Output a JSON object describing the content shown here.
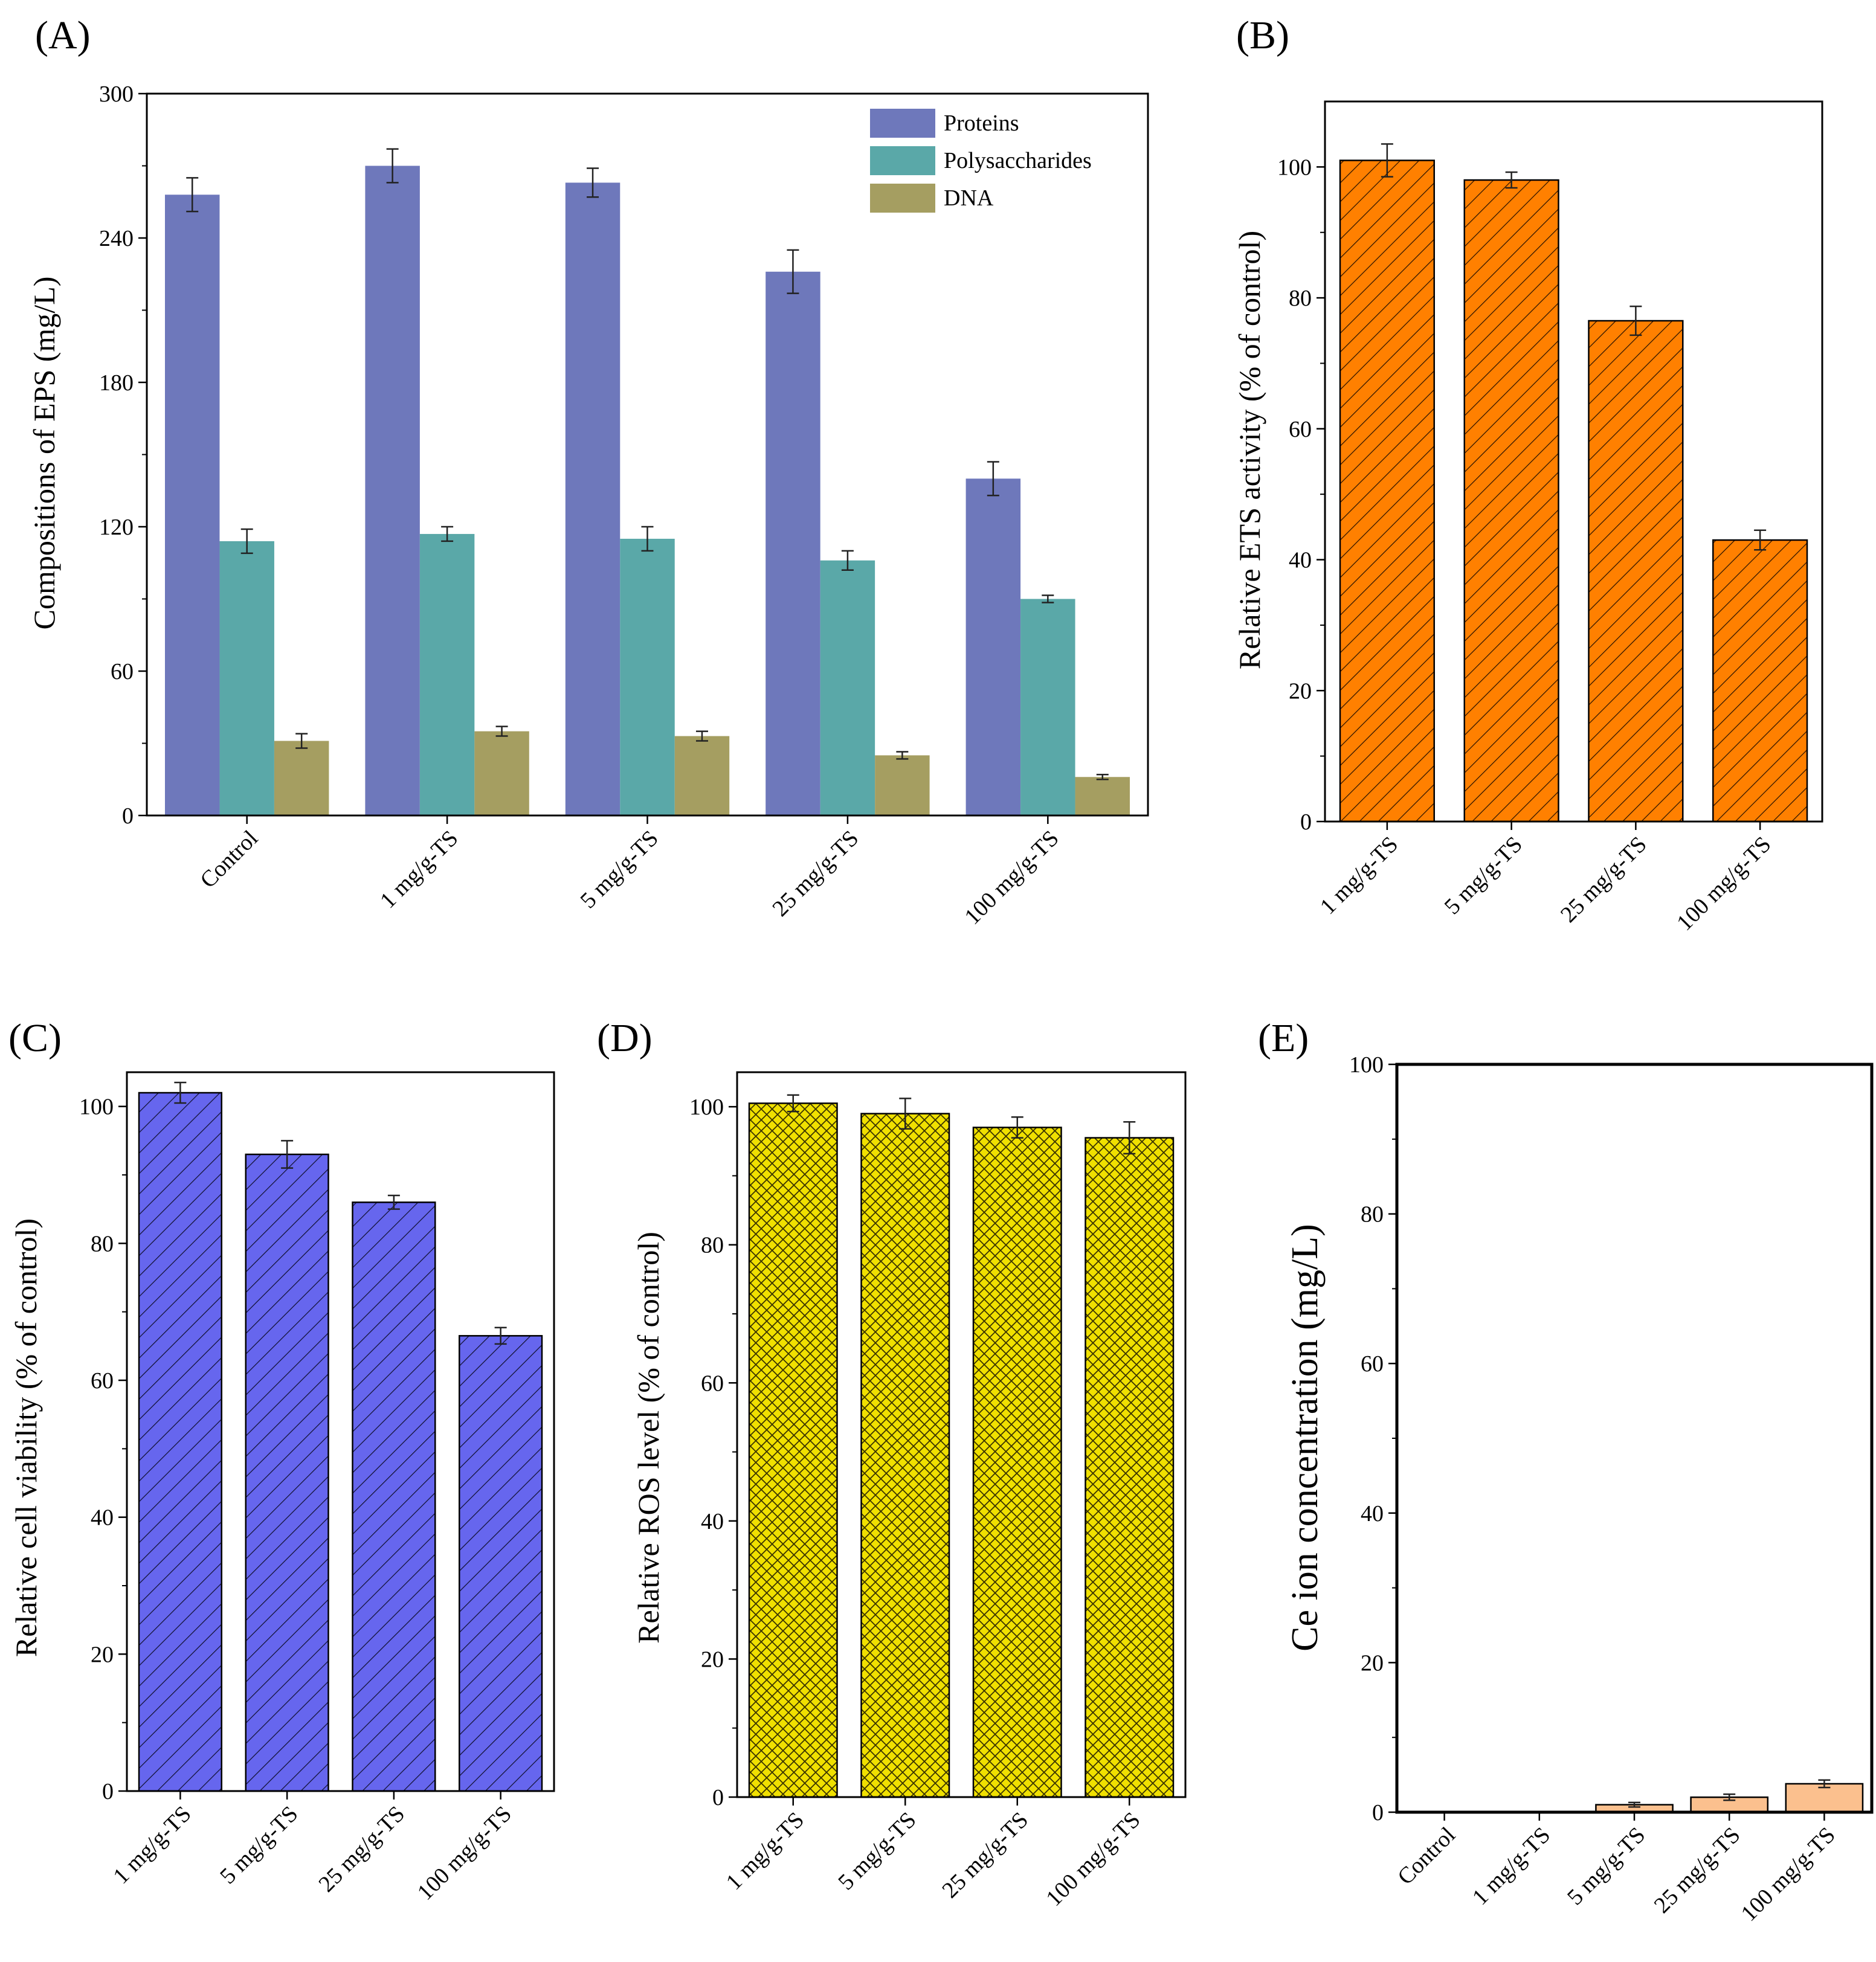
{
  "chart_data": [
    {
      "id": "A",
      "panel_label": "(A)",
      "type": "bar",
      "title": "",
      "xlabel": "",
      "ylabel": "Compositions of EPS (mg/L)",
      "ylim": [
        0,
        300
      ],
      "yticks": [
        0,
        60,
        120,
        180,
        240,
        300
      ],
      "categories": [
        "Control",
        "1 mg/g-TS",
        "5 mg/g-TS",
        "25 mg/g-TS",
        "100 mg/g-TS"
      ],
      "series": [
        {
          "name": "Proteins",
          "color": "#6e78bb",
          "values": [
            258,
            270,
            263,
            226,
            140
          ],
          "errors": [
            7,
            7,
            6,
            9,
            7
          ]
        },
        {
          "name": "Polysaccharides",
          "color": "#5aa8a8",
          "values": [
            114,
            117,
            115,
            106,
            90
          ],
          "errors": [
            5,
            3,
            5,
            4,
            1.5
          ]
        },
        {
          "name": "DNA",
          "color": "#a59e61",
          "values": [
            31,
            35,
            33,
            25,
            16
          ],
          "errors": [
            3,
            2,
            2,
            1.5,
            1
          ]
        }
      ],
      "legend_position": "top-right",
      "grid": false
    },
    {
      "id": "B",
      "panel_label": "(B)",
      "type": "bar",
      "title": "",
      "xlabel": "",
      "ylabel": "Relative ETS activity (% of control)",
      "ylim": [
        0,
        110
      ],
      "yticks": [
        0,
        20,
        40,
        60,
        80,
        100
      ],
      "categories": [
        "1 mg/g-TS",
        "5 mg/g-TS",
        "25 mg/g-TS",
        "100 mg/g-TS"
      ],
      "values": [
        101,
        98,
        76.5,
        43
      ],
      "errors": [
        2.5,
        1.2,
        2.2,
        1.5
      ],
      "color": "#ff8000",
      "pattern": "diagonal-hatch",
      "grid": false
    },
    {
      "id": "C",
      "panel_label": "(C)",
      "type": "bar",
      "title": "",
      "xlabel": "",
      "ylabel": "Relative cell viability (% of control)",
      "ylim": [
        0,
        105
      ],
      "yticks": [
        0,
        20,
        40,
        60,
        80,
        100
      ],
      "categories": [
        "1 mg/g-TS",
        "5 mg/g-TS",
        "25 mg/g-TS",
        "100 mg/g-TS"
      ],
      "values": [
        102,
        93,
        86,
        66.5
      ],
      "errors": [
        1.5,
        2,
        1,
        1.2
      ],
      "color": "#6666ee",
      "pattern": "diagonal-hatch",
      "grid": false
    },
    {
      "id": "D",
      "panel_label": "(D)",
      "type": "bar",
      "title": "",
      "xlabel": "",
      "ylabel": "Relative ROS level (% of control)",
      "ylim": [
        0,
        105
      ],
      "yticks": [
        0,
        20,
        40,
        60,
        80,
        100
      ],
      "categories": [
        "1 mg/g-TS",
        "5 mg/g-TS",
        "25 mg/g-TS",
        "100 mg/g-TS"
      ],
      "values": [
        100.5,
        99,
        97,
        95.5
      ],
      "errors": [
        1.2,
        2.2,
        1.5,
        2.3
      ],
      "color": "#f0e000",
      "pattern": "crosshatch",
      "grid": false
    },
    {
      "id": "E",
      "panel_label": "(E)",
      "type": "bar",
      "title": "",
      "xlabel": "",
      "ylabel": "Ce ion concentration (mg/L)",
      "ylim": [
        0,
        100
      ],
      "yticks": [
        0,
        20,
        40,
        60,
        80,
        100
      ],
      "categories": [
        "Control",
        "1 mg/g-TS",
        "5 mg/g-TS",
        "25 mg/g-TS",
        "100 mg/g-TS"
      ],
      "values": [
        0,
        0,
        1,
        2,
        3.8
      ],
      "errors": [
        0,
        0,
        0.3,
        0.4,
        0.5
      ],
      "color": "#fbc08e",
      "pattern": "none",
      "grid": false
    }
  ]
}
